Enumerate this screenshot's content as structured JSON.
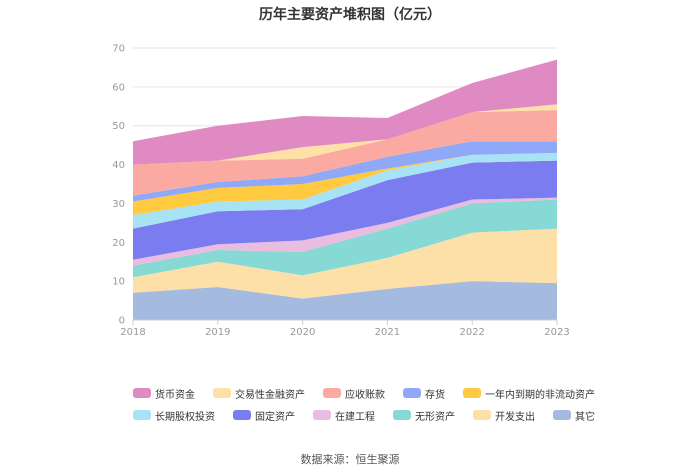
{
  "chart_data": {
    "type": "area",
    "stacked": true,
    "title": "历年主要资产堆积图（亿元）",
    "xlabel": "",
    "ylabel": "",
    "ylim": [
      0,
      70
    ],
    "yticks": [
      0,
      10,
      20,
      30,
      40,
      50,
      60,
      70
    ],
    "categories": [
      "2018",
      "2019",
      "2020",
      "2021",
      "2022",
      "2023"
    ],
    "legend_position": "bottom",
    "series": [
      {
        "name": "货币资金",
        "color": "#e08ac4",
        "values": [
          6.0,
          9.0,
          8.0,
          5.5,
          7.5,
          11.5
        ]
      },
      {
        "name": "交易性金融资产",
        "color": "#ffe0a6",
        "values": [
          0.0,
          0.0,
          3.0,
          0.0,
          0.0,
          1.5
        ]
      },
      {
        "name": "应收账款",
        "color": "#fbaaa2",
        "values": [
          8.0,
          5.5,
          4.5,
          4.5,
          7.5,
          8.0
        ]
      },
      {
        "name": "存货",
        "color": "#8fa8f7",
        "values": [
          1.5,
          1.5,
          2.0,
          3.0,
          3.5,
          3.0
        ]
      },
      {
        "name": "一年内到期的非流动资产",
        "color": "#ffc940",
        "values": [
          3.5,
          3.5,
          4.0,
          0.5,
          0.0,
          0.0
        ]
      },
      {
        "name": "长期股权投资",
        "color": "#a8e2f5",
        "values": [
          3.5,
          2.5,
          2.5,
          2.5,
          2.0,
          2.0
        ]
      },
      {
        "name": "固定资产",
        "color": "#7b7cf0",
        "values": [
          8.0,
          8.5,
          8.0,
          11.0,
          9.5,
          9.5
        ]
      },
      {
        "name": "在建工程",
        "color": "#e8bde0",
        "values": [
          1.5,
          1.5,
          3.0,
          1.5,
          1.0,
          0.5
        ]
      },
      {
        "name": "无形资产",
        "color": "#86d9d4",
        "values": [
          3.0,
          3.0,
          6.0,
          7.5,
          7.5,
          7.5
        ]
      },
      {
        "name": "开发支出",
        "color": "#fddfa8",
        "values": [
          4.0,
          6.5,
          6.0,
          8.0,
          12.5,
          14.0
        ]
      },
      {
        "name": "其它",
        "color": "#a5badf",
        "values": [
          7.0,
          8.5,
          5.5,
          8.0,
          10.0,
          9.5
        ]
      }
    ]
  },
  "source": "数据来源：恒生聚源"
}
